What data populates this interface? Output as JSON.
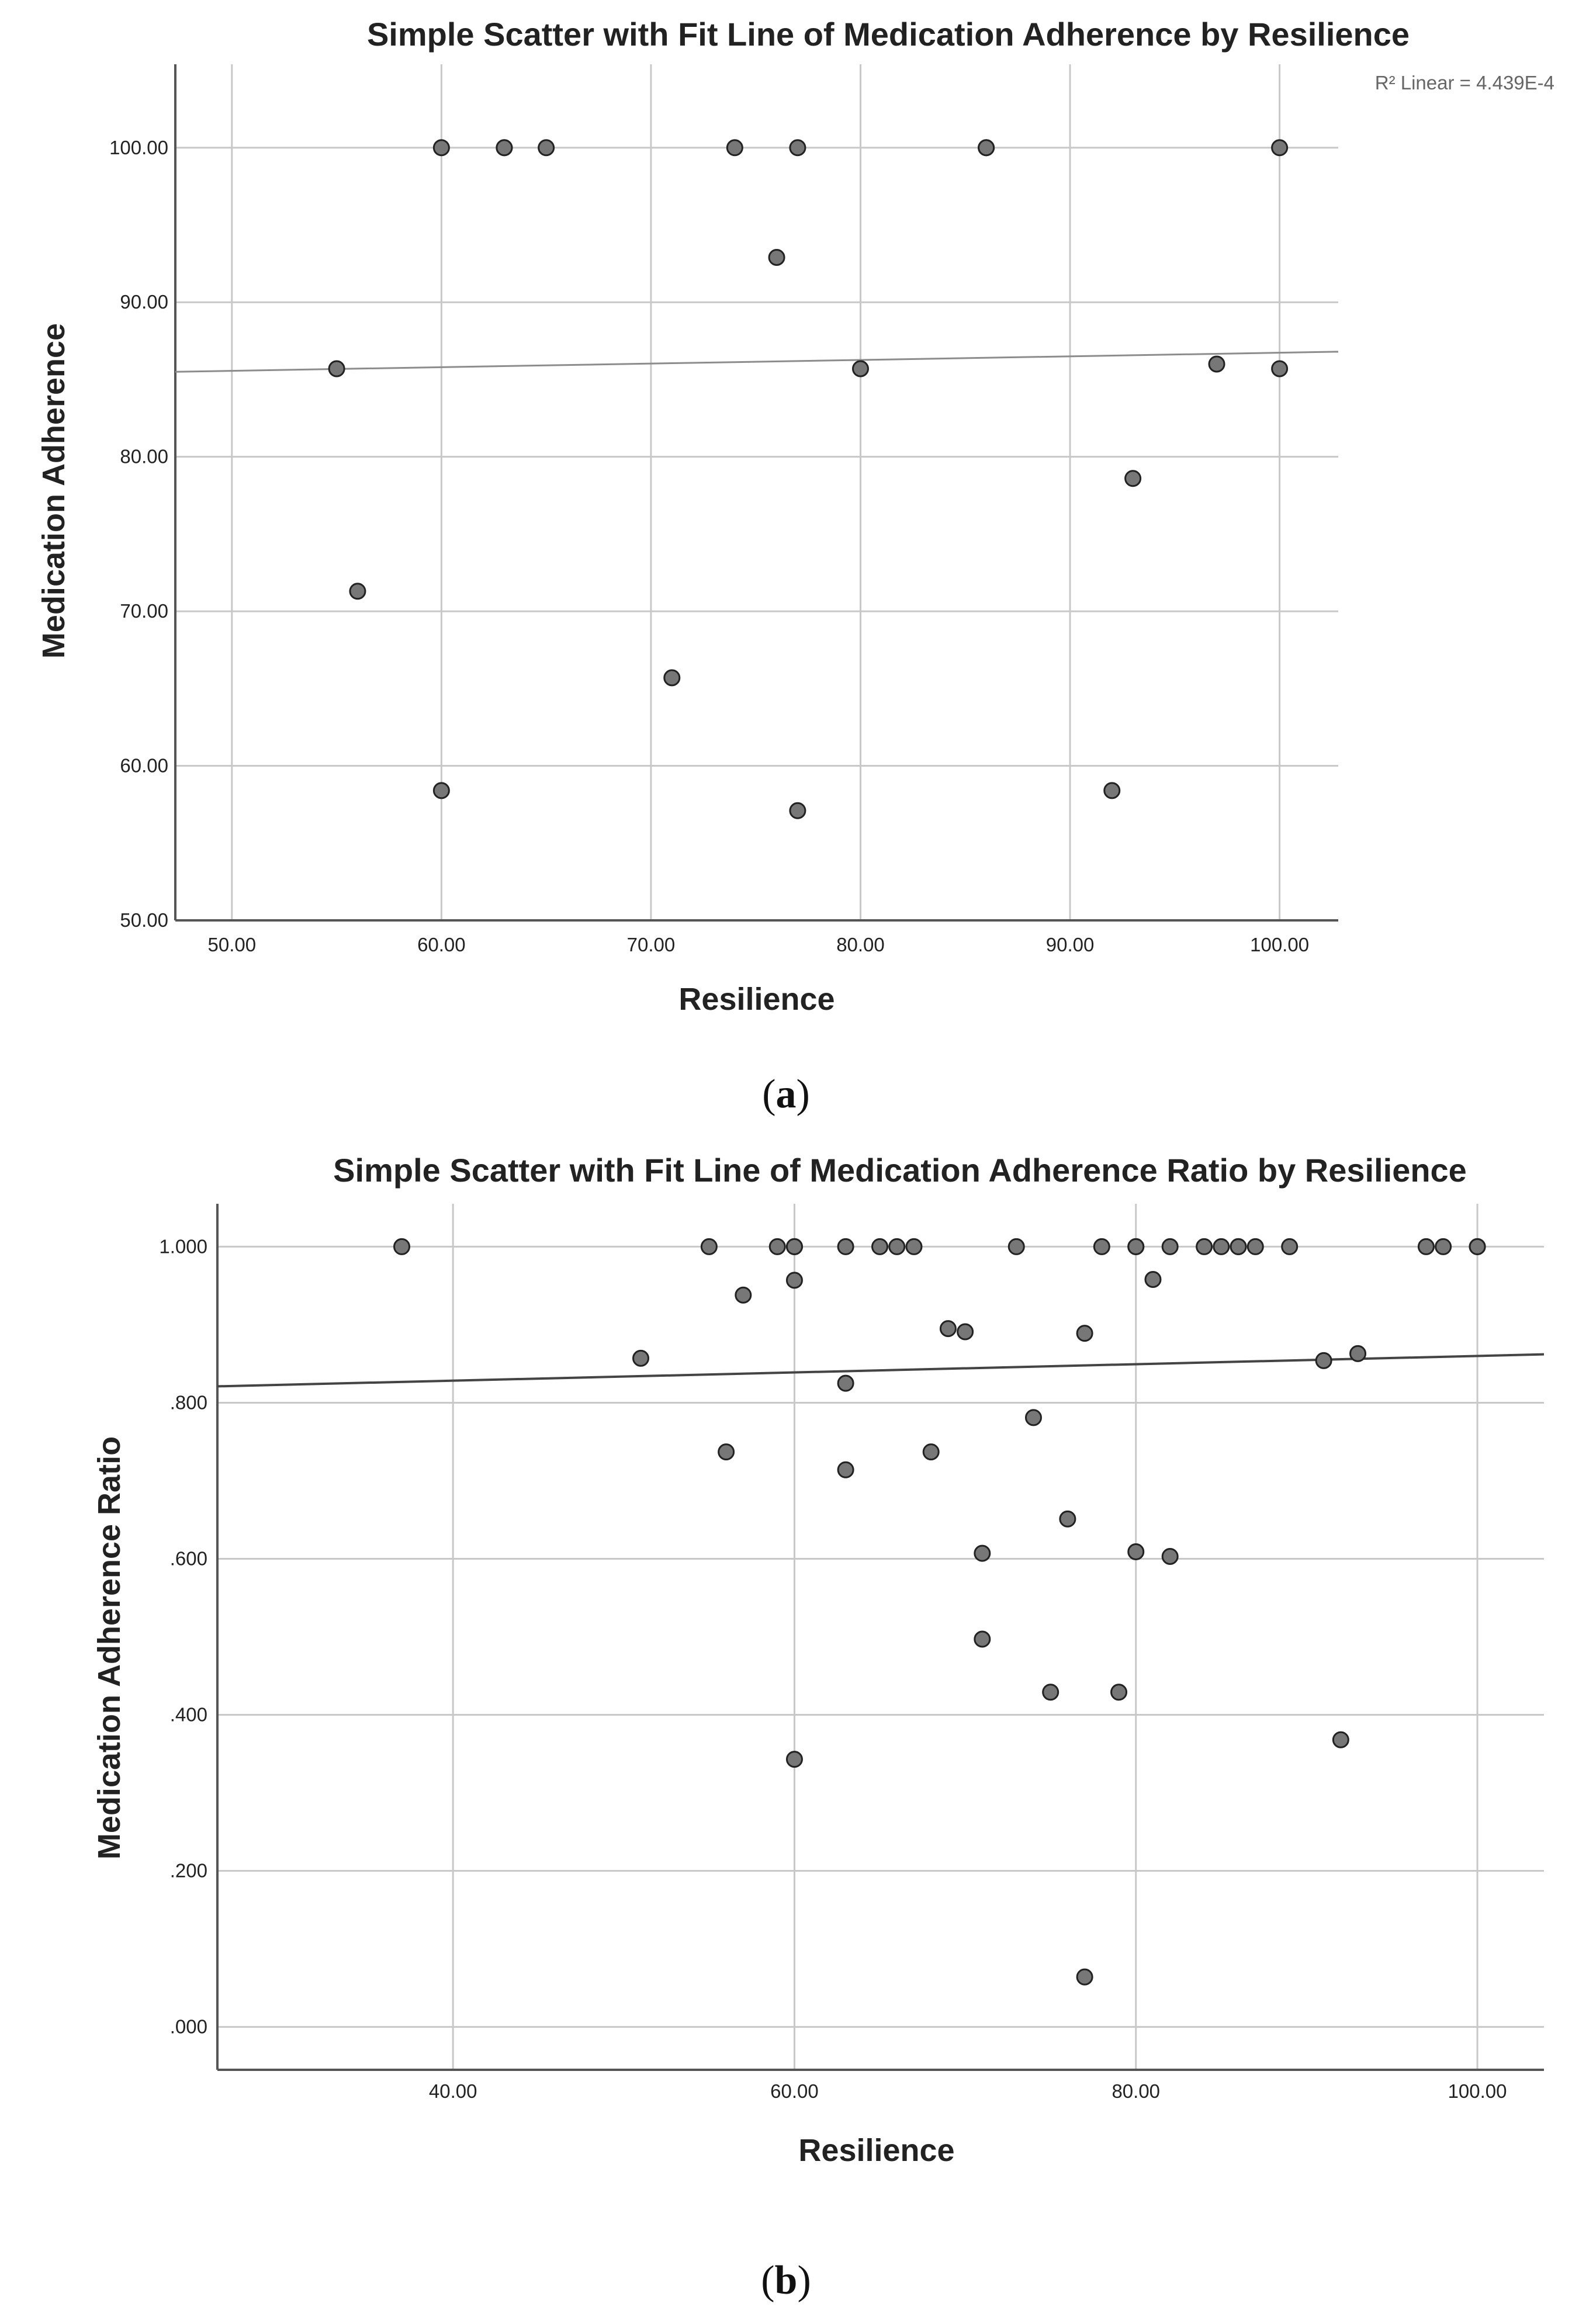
{
  "colors": {
    "grid": "#c8c8c8",
    "axis": "#555555",
    "point_fill": "#777777",
    "point_stroke": "#222222",
    "fit_line_a": "#8c8c8c",
    "fit_line_b": "#444444"
  },
  "chart_data": [
    {
      "type": "scatter",
      "title": "Simple Scatter with Fit Line of Medication Adherence by Resilience",
      "xlabel": "Resilience",
      "ylabel": "Medication Adherence",
      "panel_label": "a",
      "r2_label": "R² Linear = 4.439E-4",
      "xlim": [
        47.3,
        102.8
      ],
      "ylim": [
        50,
        105.4
      ],
      "x_ticks": [
        50,
        60,
        70,
        80,
        90,
        100
      ],
      "x_tick_labels": [
        "50.00",
        "60.00",
        "70.00",
        "80.00",
        "90.00",
        "100.00"
      ],
      "y_ticks": [
        50,
        60,
        70,
        80,
        90,
        100
      ],
      "y_tick_labels": [
        "50.00",
        "60.00",
        "70.00",
        "80.00",
        "90.00",
        "100.00"
      ],
      "grid": true,
      "fit_line": {
        "x": [
          47.3,
          102.8
        ],
        "y": [
          85.5,
          86.8
        ]
      },
      "points": [
        {
          "x": 55,
          "y": 85.7
        },
        {
          "x": 56,
          "y": 71.3
        },
        {
          "x": 60,
          "y": 100
        },
        {
          "x": 60,
          "y": 58.4
        },
        {
          "x": 63,
          "y": 100
        },
        {
          "x": 63,
          "y": 100
        },
        {
          "x": 65,
          "y": 100
        },
        {
          "x": 71,
          "y": 65.7
        },
        {
          "x": 74,
          "y": 100
        },
        {
          "x": 76,
          "y": 92.9
        },
        {
          "x": 77,
          "y": 100
        },
        {
          "x": 77,
          "y": 57.1
        },
        {
          "x": 80,
          "y": 85.7
        },
        {
          "x": 86,
          "y": 100
        },
        {
          "x": 86,
          "y": 100
        },
        {
          "x": 92,
          "y": 58.4
        },
        {
          "x": 93,
          "y": 78.6
        },
        {
          "x": 97,
          "y": 86.0
        },
        {
          "x": 100,
          "y": 100
        },
        {
          "x": 100,
          "y": 85.7
        }
      ]
    },
    {
      "type": "scatter",
      "title": "Simple Scatter with Fit Line of Medication Adherence Ratio by Resilience",
      "xlabel": "Resilience",
      "ylabel": "Medication Adherence Ratio",
      "panel_label": "b",
      "xlim": [
        26.2,
        103.9
      ],
      "ylim": [
        -0.055,
        1.055
      ],
      "x_ticks": [
        40,
        60,
        80,
        100
      ],
      "x_tick_labels": [
        "40.00",
        "60.00",
        "80.00",
        "100.00"
      ],
      "y_ticks": [
        0,
        0.2,
        0.4,
        0.6,
        0.8,
        1.0
      ],
      "y_tick_labels": [
        ".000",
        ".200",
        ".400",
        ".600",
        ".800",
        "1.000"
      ],
      "grid": true,
      "fit_line": {
        "x": [
          26.2,
          103.9
        ],
        "y": [
          0.821,
          0.862
        ]
      },
      "points": [
        {
          "x": 37,
          "y": 1.0
        },
        {
          "x": 51,
          "y": 0.857
        },
        {
          "x": 55,
          "y": 1.0
        },
        {
          "x": 56,
          "y": 0.737
        },
        {
          "x": 57,
          "y": 0.938
        },
        {
          "x": 59,
          "y": 1.0
        },
        {
          "x": 60,
          "y": 1.0
        },
        {
          "x": 60,
          "y": 1.0
        },
        {
          "x": 60,
          "y": 0.957
        },
        {
          "x": 60,
          "y": 0.343
        },
        {
          "x": 63,
          "y": 1.0
        },
        {
          "x": 63,
          "y": 0.825
        },
        {
          "x": 63,
          "y": 0.714
        },
        {
          "x": 65,
          "y": 1.0
        },
        {
          "x": 66,
          "y": 1.0
        },
        {
          "x": 67,
          "y": 1.0
        },
        {
          "x": 68,
          "y": 0.737
        },
        {
          "x": 69,
          "y": 0.895
        },
        {
          "x": 70,
          "y": 0.891
        },
        {
          "x": 71,
          "y": 0.607
        },
        {
          "x": 71,
          "y": 0.497
        },
        {
          "x": 73,
          "y": 1.0
        },
        {
          "x": 74,
          "y": 0.781
        },
        {
          "x": 75,
          "y": 0.429
        },
        {
          "x": 76,
          "y": 0.651
        },
        {
          "x": 77,
          "y": 0.889
        },
        {
          "x": 77,
          "y": 0.064
        },
        {
          "x": 78,
          "y": 1.0
        },
        {
          "x": 79,
          "y": 0.429
        },
        {
          "x": 80,
          "y": 1.0
        },
        {
          "x": 80,
          "y": 1.0
        },
        {
          "x": 80,
          "y": 0.609
        },
        {
          "x": 81,
          "y": 0.958
        },
        {
          "x": 82,
          "y": 1.0
        },
        {
          "x": 82,
          "y": 0.603
        },
        {
          "x": 84,
          "y": 1.0
        },
        {
          "x": 85,
          "y": 1.0
        },
        {
          "x": 86,
          "y": 1.0
        },
        {
          "x": 86,
          "y": 1.0
        },
        {
          "x": 87,
          "y": 1.0
        },
        {
          "x": 89,
          "y": 1.0
        },
        {
          "x": 91,
          "y": 0.854
        },
        {
          "x": 92,
          "y": 0.368
        },
        {
          "x": 93,
          "y": 0.863
        },
        {
          "x": 97,
          "y": 1.0
        },
        {
          "x": 98,
          "y": 1.0
        },
        {
          "x": 100,
          "y": 1.0
        },
        {
          "x": 100,
          "y": 1.0
        }
      ]
    }
  ]
}
